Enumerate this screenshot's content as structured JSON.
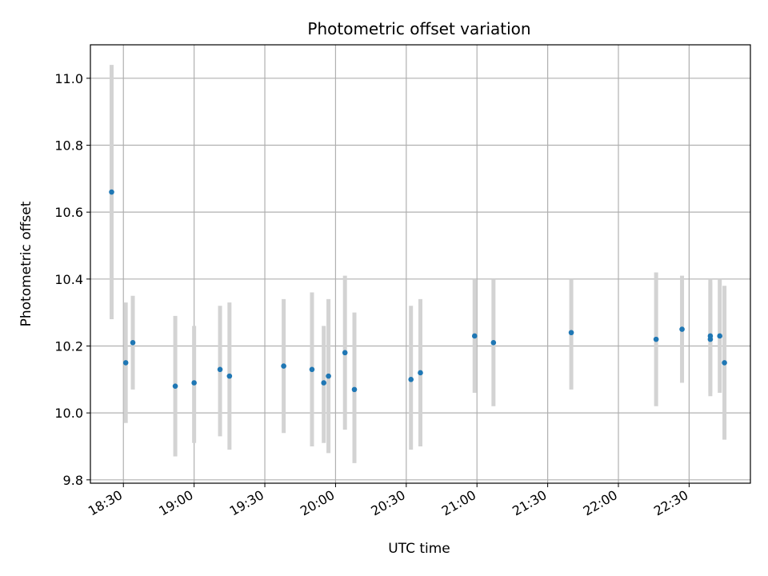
{
  "chart_data": {
    "type": "scatter",
    "title": "Photometric offset variation",
    "xlabel": "UTC time",
    "ylabel": "Photometric offset",
    "xlim": [
      "18:16",
      "22:56"
    ],
    "ylim": [
      9.79,
      11.1
    ],
    "x_ticks": [
      "18:30",
      "19:00",
      "19:30",
      "20:00",
      "20:30",
      "21:00",
      "21:30",
      "22:00",
      "22:30"
    ],
    "y_ticks": [
      9.8,
      10.0,
      10.2,
      10.4,
      10.6,
      10.8,
      11.0
    ],
    "grid": true,
    "point_color": "#1f77b4",
    "errorbar_color": "#d3d3d3",
    "points": [
      {
        "x": "18:25",
        "y": 10.66,
        "ylow": 10.28,
        "yhigh": 11.04
      },
      {
        "x": "18:31",
        "y": 10.15,
        "ylow": 9.97,
        "yhigh": 10.33
      },
      {
        "x": "18:34",
        "y": 10.21,
        "ylow": 10.07,
        "yhigh": 10.35
      },
      {
        "x": "18:52",
        "y": 10.08,
        "ylow": 9.87,
        "yhigh": 10.29
      },
      {
        "x": "19:00",
        "y": 10.09,
        "ylow": 9.91,
        "yhigh": 10.26
      },
      {
        "x": "19:11",
        "y": 10.13,
        "ylow": 9.93,
        "yhigh": 10.32
      },
      {
        "x": "19:15",
        "y": 10.11,
        "ylow": 9.89,
        "yhigh": 10.33
      },
      {
        "x": "19:38",
        "y": 10.14,
        "ylow": 9.94,
        "yhigh": 10.34
      },
      {
        "x": "19:50",
        "y": 10.13,
        "ylow": 9.9,
        "yhigh": 10.36
      },
      {
        "x": "19:55",
        "y": 10.09,
        "ylow": 9.91,
        "yhigh": 10.26
      },
      {
        "x": "19:57",
        "y": 10.11,
        "ylow": 9.88,
        "yhigh": 10.34
      },
      {
        "x": "20:04",
        "y": 10.18,
        "ylow": 9.95,
        "yhigh": 10.41
      },
      {
        "x": "20:08",
        "y": 10.07,
        "ylow": 9.85,
        "yhigh": 10.3
      },
      {
        "x": "20:32",
        "y": 10.1,
        "ylow": 9.89,
        "yhigh": 10.32
      },
      {
        "x": "20:36",
        "y": 10.12,
        "ylow": 9.9,
        "yhigh": 10.34
      },
      {
        "x": "20:59",
        "y": 10.23,
        "ylow": 10.06,
        "yhigh": 10.4
      },
      {
        "x": "21:07",
        "y": 10.21,
        "ylow": 10.02,
        "yhigh": 10.4
      },
      {
        "x": "21:40",
        "y": 10.24,
        "ylow": 10.07,
        "yhigh": 10.4
      },
      {
        "x": "22:16",
        "y": 10.22,
        "ylow": 10.02,
        "yhigh": 10.42
      },
      {
        "x": "22:27",
        "y": 10.25,
        "ylow": 10.09,
        "yhigh": 10.41
      },
      {
        "x": "22:39",
        "y": 10.22,
        "ylow": 10.05,
        "yhigh": 10.39
      },
      {
        "x": "22:39",
        "y": 10.23,
        "ylow": 10.06,
        "yhigh": 10.4
      },
      {
        "x": "22:43",
        "y": 10.23,
        "ylow": 10.06,
        "yhigh": 10.4
      },
      {
        "x": "22:45",
        "y": 10.15,
        "ylow": 9.92,
        "yhigh": 10.38
      }
    ]
  }
}
